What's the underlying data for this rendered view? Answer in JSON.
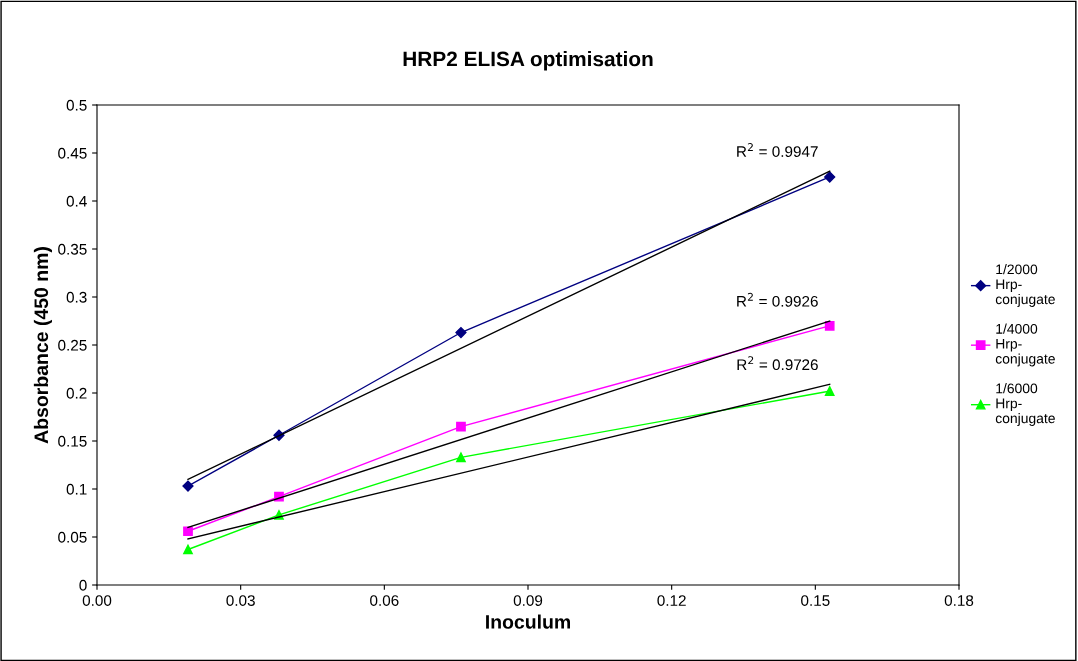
{
  "chart_data": {
    "type": "line",
    "title": "HRP2 ELISA optimisation",
    "xlabel": "Inoculum",
    "ylabel": "Absorbance (450 nm)",
    "xlim": [
      0,
      0.18
    ],
    "xticks": [
      {
        "value": 0,
        "label": "0.00"
      },
      {
        "value": 0.03,
        "label": "0.03"
      },
      {
        "value": 0.06,
        "label": "0.06"
      },
      {
        "value": 0.09,
        "label": "0.09"
      },
      {
        "value": 0.12,
        "label": "0.12"
      },
      {
        "value": 0.15,
        "label": "0.15"
      },
      {
        "value": 0.18,
        "label": "0.18"
      }
    ],
    "ylim": [
      0,
      0.5
    ],
    "yticks": [
      0,
      0.05,
      0.1,
      0.15,
      0.2,
      0.25,
      0.3,
      0.35,
      0.4,
      0.45,
      0.5
    ],
    "grid": false,
    "legend": "right",
    "series": [
      {
        "name": "1/2000\nHrp-\nconjugate",
        "color": "#000080",
        "marker": "diamond",
        "x": [
          0.019,
          0.038,
          0.076,
          0.153
        ],
        "values": [
          0.103,
          0.156,
          0.263,
          0.425
        ]
      },
      {
        "name": "1/4000\nHrp-\nconjugate",
        "color": "#ff00ff",
        "marker": "square",
        "x": [
          0.019,
          0.038,
          0.076,
          0.153
        ],
        "values": [
          0.056,
          0.092,
          0.165,
          0.27
        ]
      },
      {
        "name": "1/6000\nHrp-\nconjugate",
        "color": "#00ff00",
        "marker": "triangle",
        "x": [
          0.019,
          0.038,
          0.076,
          0.153
        ],
        "values": [
          0.037,
          0.073,
          0.133,
          0.202
        ]
      },
      {
        "color": "#000000",
        "marker": "none",
        "x": [
          0.019,
          0.153
        ],
        "values": [
          0.11,
          0.431
        ]
      },
      {
        "color": "#000000",
        "marker": "none",
        "x": [
          0.019,
          0.153
        ],
        "values": [
          0.06,
          0.275
        ]
      },
      {
        "color": "#000000",
        "marker": "none",
        "x": [
          0.019,
          0.153
        ],
        "values": [
          0.048,
          0.209
        ]
      }
    ],
    "annotations": [
      "R$^{2}$ = 0.9947",
      "R$^{2}$ = 0.9926",
      "R$^{2}$ = 0.9726"
    ]
  }
}
